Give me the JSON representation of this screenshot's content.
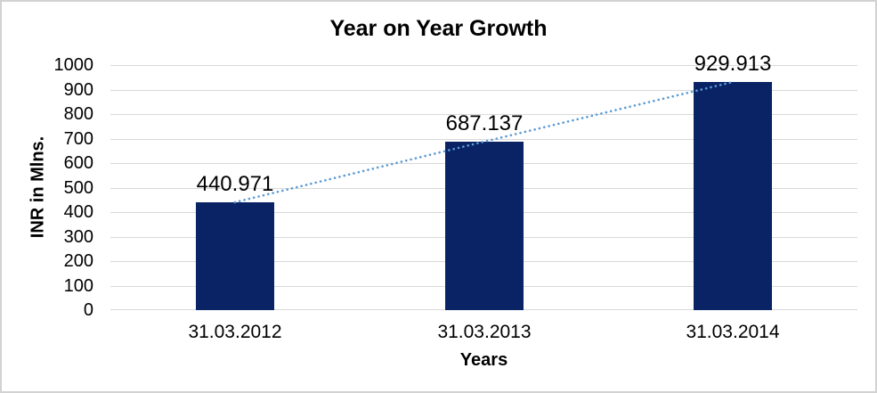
{
  "window": {
    "background": "#ffffff",
    "border_color": "#d2d2d2"
  },
  "chart_data": {
    "type": "bar",
    "title": "Year on Year Growth",
    "xlabel": "Years",
    "ylabel": "INR in Mlns.",
    "categories": [
      "31.03.2012",
      "31.03.2013",
      "31.03.2014"
    ],
    "values": [
      440.971,
      687.137,
      929.913
    ],
    "data_labels": [
      "440.971",
      "687.137",
      "929.913"
    ],
    "ylim": [
      0,
      1000
    ],
    "ytick_step": 100,
    "yticks": [
      "0",
      "100",
      "200",
      "300",
      "400",
      "500",
      "600",
      "700",
      "800",
      "900",
      "1000"
    ],
    "grid": "horizontal",
    "legend": "none",
    "trendline": {
      "style": "dotted",
      "through": "bar-tops"
    },
    "colors": {
      "bar": "#0a2365",
      "trendline": "#5b9bd5",
      "gridline": "#d9d9d9",
      "text": "#000000"
    }
  }
}
